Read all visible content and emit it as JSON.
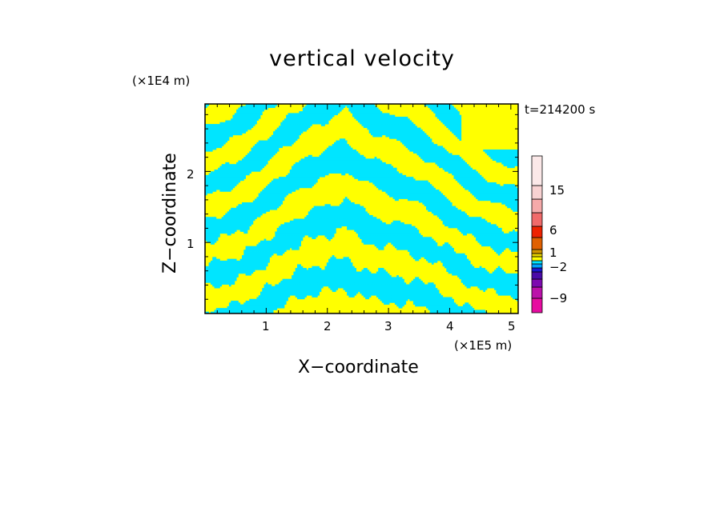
{
  "chart_data": {
    "type": "heatmap",
    "title": "vertical velocity",
    "xlabel": "X−coordinate",
    "ylabel": "Z−coordinate",
    "x_unit": "(×1E5 m)",
    "z_unit": "(×1E4 m)",
    "time_label": "t=214200 s",
    "xlim": [
      0,
      5.12
    ],
    "ylim": [
      0,
      2.95
    ],
    "xticks": [
      "1",
      "2",
      "3",
      "4",
      "5"
    ],
    "yticks": [
      "1",
      "2"
    ],
    "colorbar_labels": [
      "15",
      "6",
      "1",
      "−2",
      "−9"
    ],
    "colors": {
      "upward": "#ffff00",
      "downward": "#00e5ff"
    },
    "colorbar_colors": [
      "#e60ca0",
      "#bb11aa",
      "#7d0ab0",
      "#4a0aa8",
      "#1a18d0",
      "#00a0ff",
      "#00e5ff",
      "#ffff00",
      "#e6d200",
      "#d29600",
      "#e06000",
      "#ee2200",
      "#f06a6a",
      "#f5aaaa",
      "#f8d2d2",
      "#fbe8e8"
    ],
    "dominant_pattern": "alternating bands of positive (yellow) and negative (cyan) vertical velocity forming an arch centered near x=2.3"
  }
}
